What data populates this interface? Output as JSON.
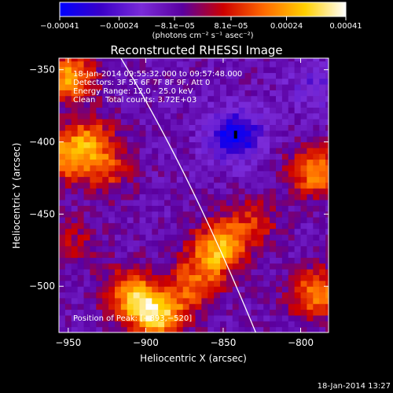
{
  "chart_data": {
    "type": "heatmap",
    "title": "Reconstructed RHESSI Image",
    "xlabel": "Heliocentric X (arcsec)",
    "ylabel": "Heliocentric Y (arcsec)",
    "xlim": [
      -956,
      -782
    ],
    "ylim": [
      -532,
      -342
    ],
    "x_ticks": [
      -950,
      -900,
      -850,
      -800
    ],
    "y_ticks": [
      -350,
      -400,
      -450,
      -500
    ],
    "x_tick_labels": [
      "−950",
      "−900",
      "−850",
      "−800"
    ],
    "y_tick_labels": [
      "−350",
      "−400",
      "−450",
      "−500"
    ],
    "colorbar": {
      "min": -0.00041,
      "max": 0.00041,
      "ticks": [
        -0.00041,
        -0.00024,
        -8.1e-05,
        8.1e-05,
        0.00024,
        0.00041
      ],
      "tick_labels": [
        "−0.00041",
        "−0.00024",
        "−8.1e−05",
        "8.1e−05",
        "0.00024",
        "0.00041"
      ],
      "unit": "(photons cm⁻² s⁻¹ asec⁻²)",
      "colors": [
        "#0000ff",
        "#3a00c8",
        "#7a2bd8",
        "#5a00a0",
        "#cc0000",
        "#ff6a00",
        "#ffd000",
        "#ffffff"
      ]
    },
    "annotations": [
      "18-Jan-2014 09:55:32.000 to 09:57:48.000",
      "Detectors: 3F 5F 6F 7F 8F 9F, Att 0",
      "Energy Range: 12.0 - 25.0 keV",
      "Clean    Total counts: 3.72E+03"
    ],
    "peak_label": "Position of Peak:",
    "peak_value": "[−893,−520]",
    "peak": [
      -893,
      -520
    ],
    "limb_curve": [
      [
        -916,
        -342
      ],
      [
        -872,
        -420
      ],
      [
        -829,
        -532
      ]
    ],
    "sources": [
      {
        "x": -950,
        "y": -355,
        "value": 0.00033
      },
      {
        "x": -952,
        "y": -410,
        "value": 0.00028
      },
      {
        "x": -935,
        "y": -398,
        "value": 0.00022
      },
      {
        "x": -925,
        "y": -420,
        "value": 0.00018
      },
      {
        "x": -945,
        "y": -470,
        "value": 0.00012
      },
      {
        "x": -893,
        "y": -520,
        "value": 0.00041
      },
      {
        "x": -910,
        "y": -505,
        "value": 0.0003
      },
      {
        "x": -870,
        "y": -500,
        "value": 0.00022
      },
      {
        "x": -850,
        "y": -470,
        "value": 0.00024
      },
      {
        "x": -830,
        "y": -455,
        "value": 0.00016
      },
      {
        "x": -858,
        "y": -480,
        "value": 0.00018
      },
      {
        "x": -790,
        "y": -420,
        "value": 0.00032
      },
      {
        "x": -790,
        "y": -505,
        "value": 0.0003
      },
      {
        "x": -842,
        "y": -395,
        "value": -0.00033
      },
      {
        "x": -790,
        "y": -360,
        "value": -0.00012
      }
    ],
    "grid": false
  },
  "footer": {
    "timestamp": "18-Jan-2014 13:27"
  }
}
